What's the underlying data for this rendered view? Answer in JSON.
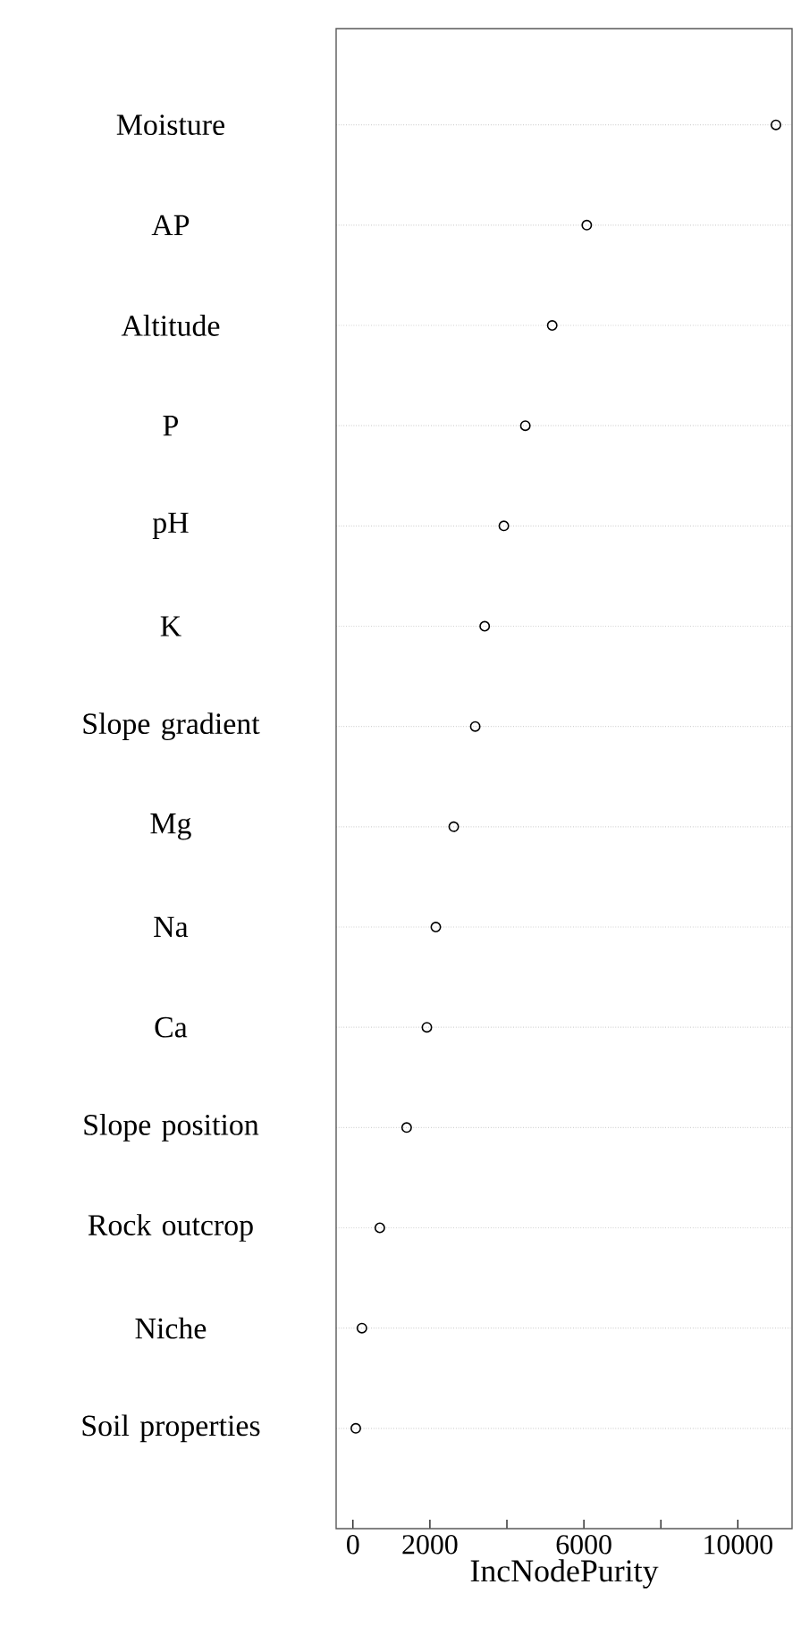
{
  "chart_data": {
    "type": "scatter",
    "orientation": "horizontal",
    "xlabel": "IncNodePurity",
    "categories": [
      "Moisture",
      "AP",
      "Altitude",
      "P",
      "pH",
      "K",
      "Slope gradient",
      "Mg",
      "Na",
      "Ca",
      "Slope position",
      "Rock outcrop",
      "Niche",
      "Soil properties"
    ],
    "values": [
      10990,
      6075,
      5177,
      4479,
      3921,
      3423,
      3177,
      2619,
      2153,
      1921,
      1395,
      698,
      233,
      74
    ],
    "color": "#000000",
    "marker": "circle",
    "grid": "y",
    "xlim": [
      -437,
      11409
    ],
    "xticks": [
      0,
      2000,
      {
        "value": 4000,
        "label": null
      },
      6000,
      {
        "value": 8000,
        "label": null
      },
      10000
    ]
  }
}
